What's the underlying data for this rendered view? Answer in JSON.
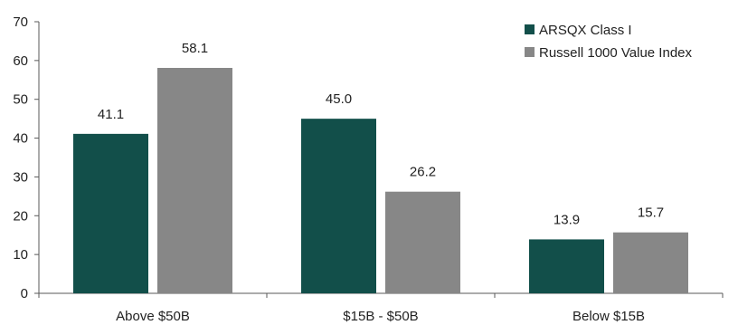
{
  "chart_data": {
    "type": "bar",
    "categories": [
      "Above $50B",
      "$15B - $50B",
      "Below $15B"
    ],
    "series": [
      {
        "name": "ARSQX Class I",
        "values": [
          41.1,
          45.0,
          13.9
        ],
        "color": "#124f4a"
      },
      {
        "name": "Russell 1000 Value Index",
        "values": [
          58.1,
          26.2,
          15.7
        ],
        "color": "#878787"
      }
    ],
    "value_labels": [
      [
        "41.1",
        "45.0",
        "13.9"
      ],
      [
        "58.1",
        "26.2",
        "15.7"
      ]
    ],
    "title": "",
    "xlabel": "",
    "ylabel": "",
    "ylim": [
      0,
      70
    ],
    "yticks": [
      "0",
      "10",
      "20",
      "30",
      "40",
      "50",
      "60",
      "70"
    ],
    "grid": false,
    "legend_position": "top-right"
  }
}
